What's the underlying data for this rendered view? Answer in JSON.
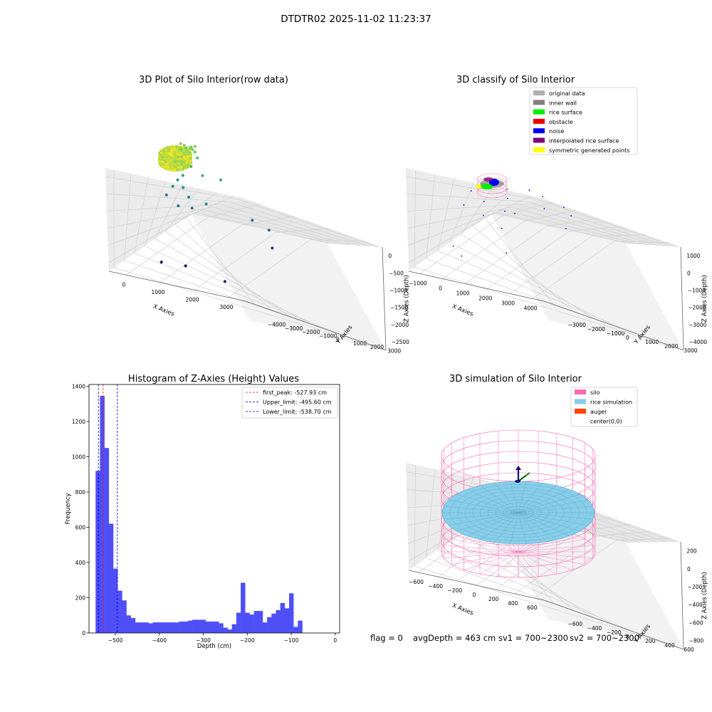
{
  "figure": {
    "suptitle": "DTDTR02 2025-11-02 11:23:37",
    "footer": {
      "flag": "flag = 0",
      "avg_depth": "avgDepth = 463 cm",
      "sv1": "sv1 = 700~2300",
      "sv2": "sv2 = 700~2300"
    }
  },
  "chart_data": [
    {
      "type": "scatter",
      "projection": "3d",
      "title": "3D Plot of Silo Interior(row data)",
      "xlabel": "X Axies",
      "ylabel": "Y Axies",
      "zlabel": "Z Axies (Depth)",
      "x_ticks": [
        "0",
        "1000",
        "2000",
        "3000"
      ],
      "y_ticks": [
        "−4000",
        "−3000",
        "−2000",
        "−1000",
        "0",
        "1000",
        "2000",
        "3000"
      ],
      "z_ticks": [
        "0",
        "−500",
        "−1000",
        "−1500",
        "−2000",
        "−2500"
      ],
      "xlim": [
        -600,
        4000
      ],
      "ylim": [
        -4000,
        3300
      ],
      "zlim": [
        -2900,
        100
      ],
      "grid": true,
      "colormap": "viridis",
      "points": [
        {
          "x": -300,
          "y": 1600,
          "z": -420
        },
        {
          "x": -200,
          "y": 1650,
          "z": -460
        },
        {
          "x": -100,
          "y": 1550,
          "z": -500
        },
        {
          "x": 0,
          "y": 1650,
          "z": -480
        },
        {
          "x": 100,
          "y": 1600,
          "z": -520
        },
        {
          "x": -250,
          "y": 1500,
          "z": -540
        },
        {
          "x": 50,
          "y": 1500,
          "z": -470
        },
        {
          "x": 150,
          "y": 1700,
          "z": -440
        },
        {
          "x": 0,
          "y": 1750,
          "z": -500
        },
        {
          "x": -150,
          "y": 1700,
          "z": -530
        },
        {
          "x": 200,
          "y": 1550,
          "z": -560
        },
        {
          "x": 300,
          "y": 1500,
          "z": -700
        },
        {
          "x": 200,
          "y": 1200,
          "z": -900
        },
        {
          "x": 0,
          "y": 1000,
          "z": -1150
        },
        {
          "x": -100,
          "y": 800,
          "z": -1250
        },
        {
          "x": -300,
          "y": 900,
          "z": -1500
        },
        {
          "x": -400,
          "y": 600,
          "z": -1700
        },
        {
          "x": 200,
          "y": 500,
          "z": -1350
        },
        {
          "x": 700,
          "y": 900,
          "z": -1000
        },
        {
          "x": 1200,
          "y": 1200,
          "z": -1100
        },
        {
          "x": 500,
          "y": 200,
          "z": -1500
        },
        {
          "x": 300,
          "y": -200,
          "z": -1700
        },
        {
          "x": 800,
          "y": -300,
          "z": -1650
        },
        {
          "x": 1200,
          "y": -100,
          "z": -1500
        },
        {
          "x": 2600,
          "y": 300,
          "z": -1800
        },
        {
          "x": 3200,
          "y": 200,
          "z": -1950
        },
        {
          "x": 3500,
          "y": -300,
          "z": -2300
        },
        {
          "x": 600,
          "y": -2500,
          "z": -2750
        },
        {
          "x": 1300,
          "y": -2200,
          "z": -2800
        },
        {
          "x": 3000,
          "y": -3200,
          "z": -2700
        }
      ]
    },
    {
      "type": "scatter",
      "projection": "3d",
      "title": "3D classify of Silo Interior",
      "xlabel": "X Axies",
      "ylabel": "Y Axies",
      "zlabel": "Z Axies (Depth)",
      "x_ticks": [
        "−1000",
        "0",
        "1000",
        "2000",
        "3000",
        "4000"
      ],
      "y_ticks": [
        "−3000",
        "−2000",
        "−1000",
        "0",
        "1000",
        "2000",
        "3000"
      ],
      "z_ticks": [
        "1000",
        "0",
        "−1000",
        "−2000",
        "−3000",
        "−4000"
      ],
      "xlim": [
        -1500,
        4600
      ],
      "ylim": [
        -3500,
        3300
      ],
      "zlim": [
        -4500,
        1600
      ],
      "grid": true,
      "legend_position": "top-right",
      "legend": [
        {
          "label": "original data",
          "color": "#b0b0b0"
        },
        {
          "label": "inner wall",
          "color": "#808080"
        },
        {
          "label": "rice surface",
          "color": "#00ee00"
        },
        {
          "label": "obstacle",
          "color": "#ee0000"
        },
        {
          "label": "noise",
          "color": "#0000ee"
        },
        {
          "label": "interpolated rice surface",
          "color": "#800080"
        },
        {
          "label": "symmetric generated points",
          "color": "#ffff00"
        }
      ],
      "noise_points": [
        {
          "x": -800,
          "y": 400,
          "z": -1500
        },
        {
          "x": -700,
          "y": -400,
          "z": -1900
        },
        {
          "x": 0,
          "y": 0,
          "z": -1700
        },
        {
          "x": 600,
          "y": 800,
          "z": -1200
        },
        {
          "x": 900,
          "y": 300,
          "z": -1400
        },
        {
          "x": 1500,
          "y": 1000,
          "z": -1100
        },
        {
          "x": 2100,
          "y": 1000,
          "z": -1300
        },
        {
          "x": 2500,
          "y": 400,
          "z": -1600
        },
        {
          "x": 3100,
          "y": 900,
          "z": -1600
        },
        {
          "x": 3600,
          "y": 600,
          "z": -1800
        },
        {
          "x": 3800,
          "y": -200,
          "z": -2100
        },
        {
          "x": 400,
          "y": -800,
          "z": -2000
        },
        {
          "x": 1100,
          "y": -300,
          "z": -1800
        },
        {
          "x": 1600,
          "y": -400,
          "z": -1750
        },
        {
          "x": 1500,
          "y": -1300,
          "z": -2200
        },
        {
          "x": 2200,
          "y": -2200,
          "z": -3000
        },
        {
          "x": -200,
          "y": -2200,
          "z": -3300
        },
        {
          "x": 400,
          "y": -2600,
          "z": -3500
        }
      ]
    },
    {
      "type": "bar",
      "title": "Histogram of Z-Axies (Height) Values",
      "xlabel": "Depth (cm)",
      "ylabel": "Frequency",
      "xlim": [
        -560,
        10
      ],
      "ylim": [
        0,
        1410
      ],
      "x_ticks": [
        -500,
        -400,
        -300,
        -200,
        -100,
        0
      ],
      "y_ticks": [
        0,
        200,
        400,
        600,
        800,
        1000,
        1200,
        1400
      ],
      "bin_width": 10,
      "bar_color": "#4f4ff8",
      "bin_edges_start": -545,
      "values": [
        920,
        1345,
        1050,
        620,
        365,
        240,
        185,
        100,
        85,
        60,
        60,
        60,
        55,
        60,
        60,
        60,
        60,
        60,
        60,
        65,
        65,
        70,
        75,
        75,
        75,
        65,
        65,
        65,
        55,
        30,
        20,
        50,
        115,
        285,
        115,
        105,
        125,
        125,
        60,
        90,
        110,
        130,
        170,
        140,
        225,
        35,
        70
      ],
      "lines": [
        {
          "label": "first_peak: -527.93 cm",
          "x": -527.93,
          "color": "#e41a1c"
        },
        {
          "label": "Upper_limit: -495.60 cm",
          "x": -495.6,
          "color": "#0000cc"
        },
        {
          "label": "Lower_limit: -538.70 cm",
          "x": -538.7,
          "color": "#0000cc"
        }
      ],
      "legend_position": "top-right"
    },
    {
      "type": "surface",
      "projection": "3d",
      "title": "3D simulation of Silo Interior",
      "xlabel": "X Axies",
      "ylabel": "Y Axies",
      "zlabel": "Z Axies (Depth)",
      "x_ticks": [
        "−600",
        "−400",
        "−200",
        "0",
        "200",
        "400",
        "600"
      ],
      "y_ticks": [
        "−600",
        "−400",
        "−200",
        "0",
        "200",
        "400",
        "600"
      ],
      "z_ticks": [
        "200",
        "0",
        "−200",
        "−400",
        "−600",
        "−800"
      ],
      "xlim": [
        -700,
        700
      ],
      "ylim": [
        -700,
        700
      ],
      "zlim": [
        -1000,
        300
      ],
      "silo_radius": 600,
      "silo_z_top": 0,
      "silo_z_bottom": -1000,
      "rice_surface_z": -463,
      "grid": true,
      "legend_position": "top-right",
      "legend": [
        {
          "label": "silo",
          "color": "#ff69b4"
        },
        {
          "label": "rice simulation",
          "color": "#87ceeb"
        },
        {
          "label": "auger",
          "color": "#ff4500"
        },
        {
          "label": "center(0,0)",
          "color": "#ffffff"
        }
      ]
    }
  ]
}
